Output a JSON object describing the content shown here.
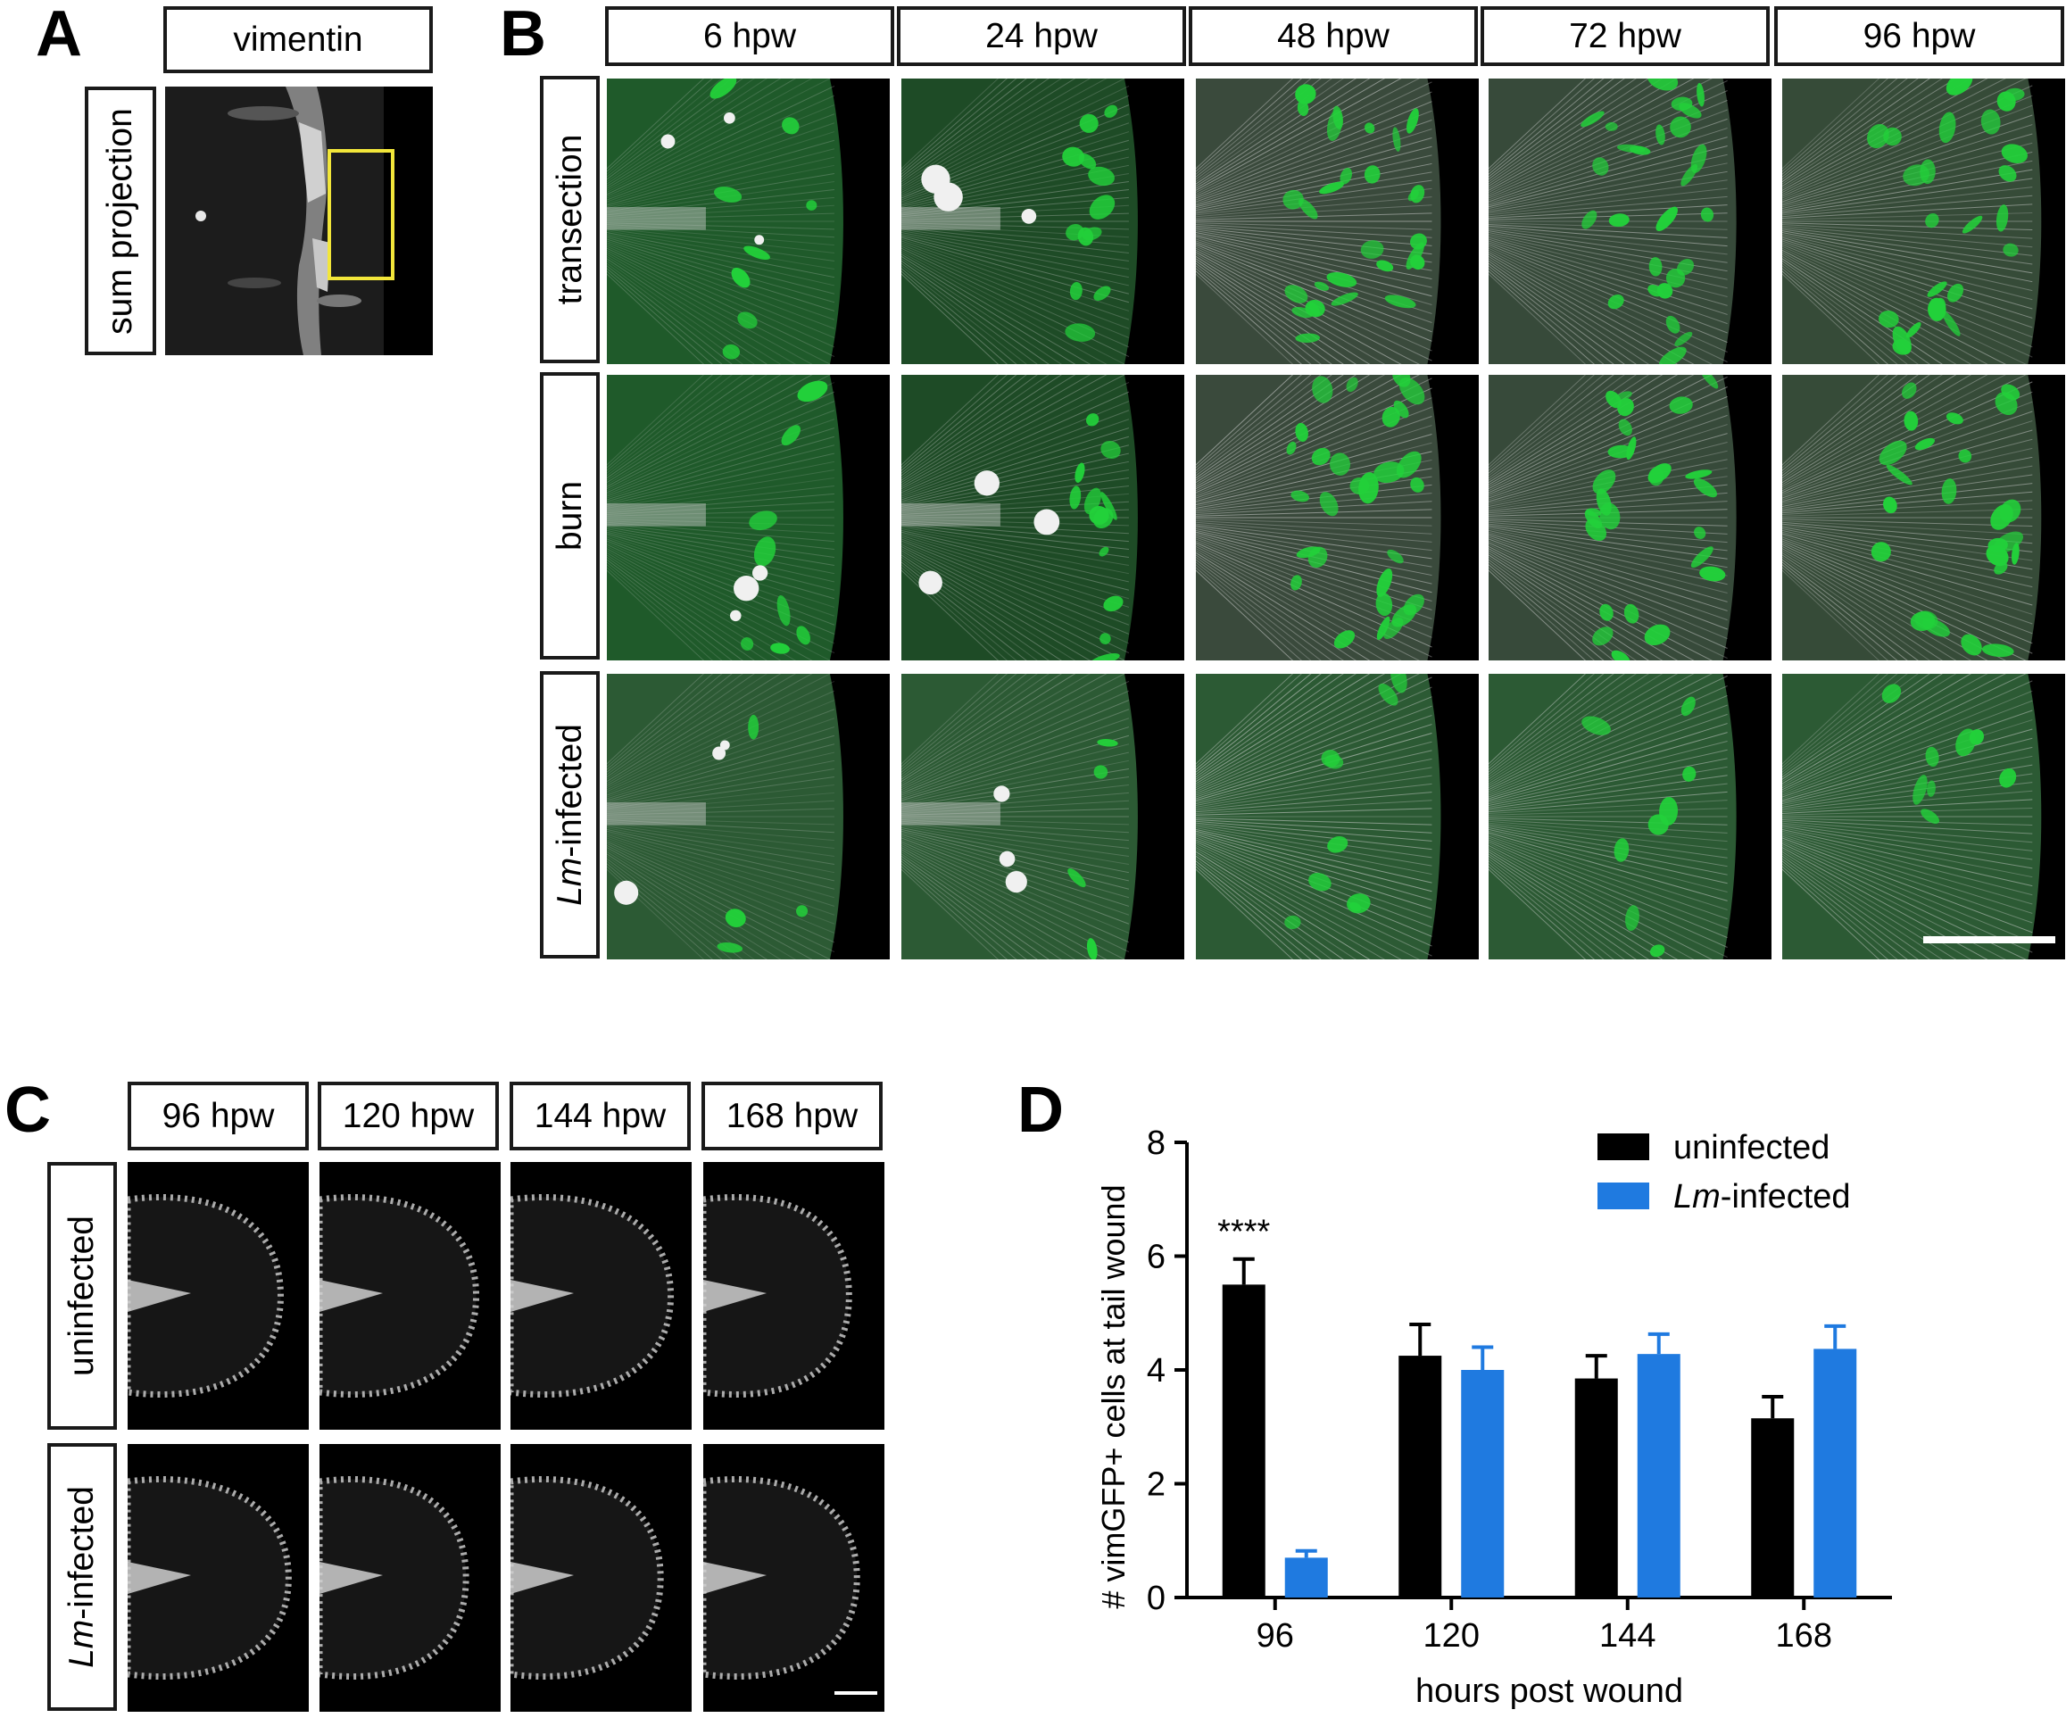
{
  "panels": {
    "A": {
      "letter": "A",
      "header": "vimentin",
      "row_label": "sum projection"
    },
    "B": {
      "letter": "B",
      "columns": [
        "6 hpw",
        "24 hpw",
        "48 hpw",
        "72 hpw",
        "96 hpw"
      ],
      "rows": [
        {
          "prefix": "",
          "suffix": "transection"
        },
        {
          "prefix": "",
          "suffix": "burn"
        },
        {
          "prefix": "Lm",
          "suffix": "-infected"
        }
      ]
    },
    "C": {
      "letter": "C",
      "columns": [
        "96 hpw",
        "120 hpw",
        "144 hpw",
        "168 hpw"
      ],
      "rows": [
        {
          "prefix": "",
          "suffix": "uninfected"
        },
        {
          "prefix": "Lm",
          "suffix": "-infected"
        }
      ]
    },
    "D": {
      "letter": "D"
    }
  },
  "colors": {
    "black_series": "#000000",
    "blue_series": "#1f7ae0",
    "roi_box": "#f2e63a",
    "fluor_green": "#22d13a"
  },
  "chart_data": {
    "type": "bar",
    "categories": [
      "96",
      "120",
      "144",
      "168"
    ],
    "xlabel": "hours post wound",
    "ylabel": "# vimGFP+ cells at tail wound",
    "ylim": [
      0,
      8
    ],
    "yticks": [
      "0",
      "2",
      "4",
      "6",
      "8"
    ],
    "legend_position": "top-right",
    "series": [
      {
        "name": "uninfected",
        "name_prefix": "",
        "name_suffix": "uninfected",
        "color": "#000000",
        "values": [
          5.5,
          4.25,
          3.85,
          3.15
        ],
        "errors": [
          0.45,
          0.55,
          0.4,
          0.38
        ]
      },
      {
        "name": "Lm-infected",
        "name_prefix": "Lm",
        "name_suffix": "-infected",
        "color": "#1f7ae0",
        "values": [
          0.7,
          4.0,
          4.28,
          4.37
        ],
        "errors": [
          0.12,
          0.4,
          0.35,
          0.4
        ]
      }
    ],
    "annotations": [
      {
        "category": "96",
        "text": "****"
      }
    ]
  }
}
